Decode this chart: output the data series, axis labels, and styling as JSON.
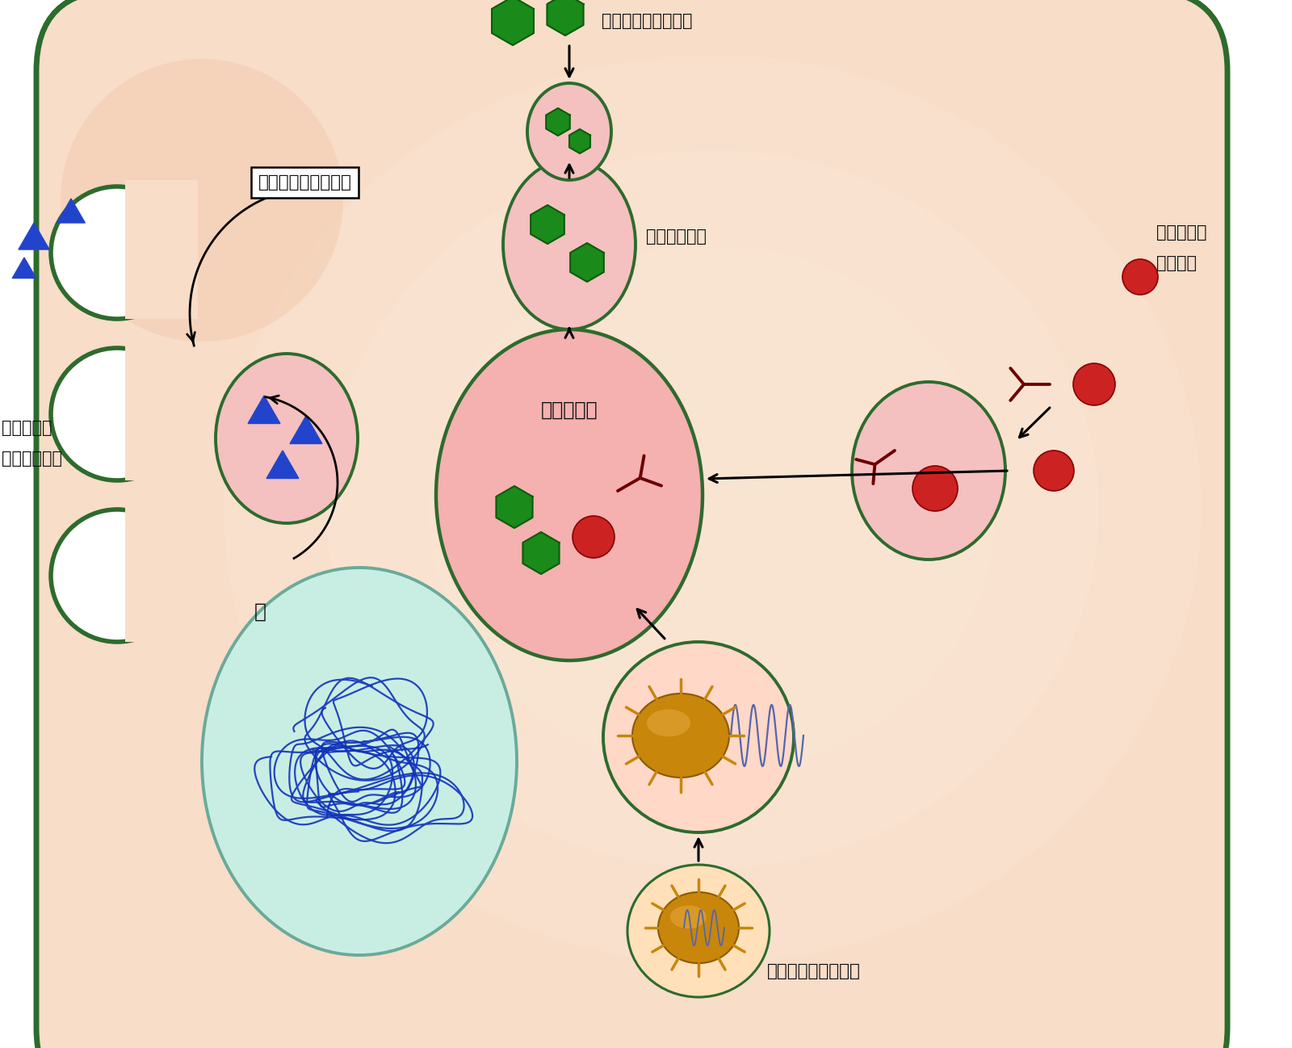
{
  "figsize": [
    16.0,
    12.98
  ],
  "dpi": 100,
  "cell_border_color": "#2d6b2d",
  "cell_fill_outer": "#f5d8c0",
  "cell_fill_inner": "#fdeee5",
  "background_color": "#ffffff",
  "text_color": "#111111",
  "green_hex_color": "#1a8a1a",
  "green_hex_edge": "#0d5c0d",
  "blue_triangle_color": "#2244cc",
  "red_circle_color": "#cc2222",
  "dark_red_color": "#6b0000",
  "gold_color": "#c8860a",
  "lysosome_fill": "#f5b0b0",
  "endosome_fill": "#f5c0c0",
  "nucleus_fill": "#c8eee4",
  "nucleus_border": "#6aaa99",
  "label_endocytosis": "エンドサイトーシス",
  "label_endosome": "エンドソーム",
  "label_lysosome": "リソソーム",
  "label_nucleus": "核",
  "label_nutrition": "栄養分子の取り込み",
  "label_info_intake_1": "情報分子の",
  "label_info_intake_2": "取り込み",
  "label_info_cycle_1": "情報分子の",
  "label_info_cycle_2": "分泌サイクル",
  "label_virus": "病原ウィルスの感染"
}
